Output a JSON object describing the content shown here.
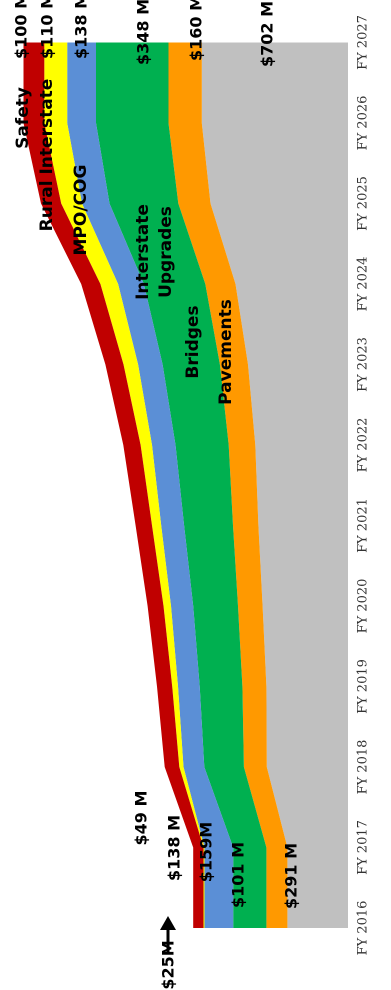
{
  "chart_data": {
    "type": "area",
    "stacked": true,
    "orientation": "rotated-90-clockwise",
    "x": [
      "FY 2016",
      "FY 2017",
      "FY 2018",
      "FY 2019",
      "FY 2020",
      "FY 2021",
      "FY 2022",
      "FY 2023",
      "FY 2024",
      "FY 2025",
      "FY 2026",
      "FY 2027"
    ],
    "series": [
      {
        "name": "Pavements",
        "color": "#c0c0c0",
        "values": [
          291,
          291,
          390,
          392,
          410,
          430,
          445,
          480,
          540,
          660,
          702,
          702
        ]
      },
      {
        "name": "Bridges",
        "color": "#ff9900",
        "values": [
          101,
          101,
          110,
          115,
          118,
          122,
          128,
          135,
          145,
          155,
          160,
          160
        ]
      },
      {
        "name": "Interstate Upgrades",
        "color": "#00b050",
        "values": [
          159,
          159,
          190,
          205,
          215,
          235,
          255,
          275,
          295,
          330,
          348,
          348
        ]
      },
      {
        "name": "MPO/COG",
        "color": "#5b8fd6",
        "values": [
          138,
          138,
          100,
          104,
          107,
          110,
          113,
          118,
          124,
          132,
          138,
          138
        ]
      },
      {
        "name": "Rural Interstate",
        "color": "#ffff00",
        "values": [
          5,
          5,
          20,
          28,
          36,
          44,
          55,
          70,
          85,
          100,
          110,
          110
        ]
      },
      {
        "name": "Safety",
        "color": "#c00000",
        "values": [
          49,
          49,
          70,
          73,
          76,
          79,
          83,
          87,
          92,
          97,
          100,
          100
        ]
      }
    ],
    "annotations": {
      "start_values": {
        "Pavements": "$291 M",
        "Bridges": "$101 M",
        "Interstate Upgrades": "$159M",
        "MPO/COG": "$138 M",
        "Safety": "$49 M"
      },
      "end_values": {
        "Pavements": "$702 M",
        "Bridges": "$160 M",
        "Interstate Upgrades": "$348 M",
        "MPO/COG": "$138 M",
        "Rural Interstate": "$110 M",
        "Safety": "$100 M"
      },
      "arrow_callout": "$25M",
      "series_labels": {
        "Pavements": "Pavements",
        "Bridges": "Bridges",
        "Interstate Upgrades": [
          "Interstate",
          "Upgrades"
        ],
        "MPO/COG": "MPO/COG",
        "Rural Interstate": "Rural Interstate",
        "Safety": "Safety"
      }
    },
    "title": "",
    "xlabel": "",
    "ylabel": "",
    "ylim": [
      0,
      1570
    ],
    "grid": false,
    "legend": "none"
  }
}
